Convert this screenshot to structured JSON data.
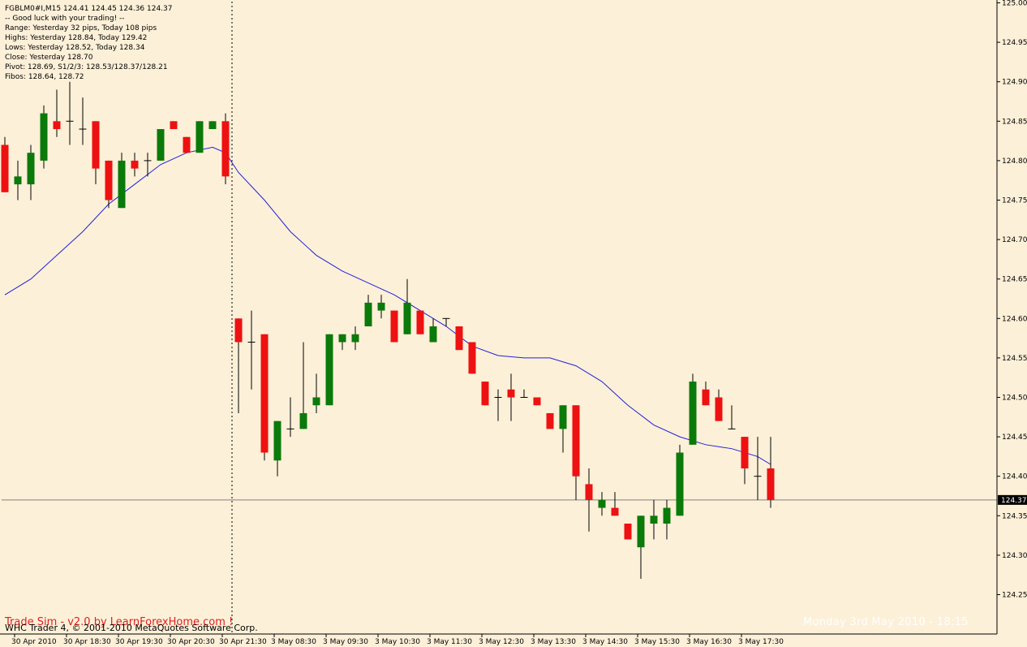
{
  "header": {
    "lines": [
      "FGBLM0#I,M15  124.41 124.45 124.36 124.37",
      "-- Good luck with your trading! --",
      "Range: Yesterday 32 pips, Today 108 pips",
      "Highs: Yesterday 128.84, Today 129.42",
      "Lows:  Yesterday 128.52, Today 128.34",
      "Close: Yesterday 128.70",
      "Pivot: 128.69, S1/2/3: 128.53/128.37/128.21",
      "Fibos: 128.64, 128.72"
    ]
  },
  "footer": {
    "watermark_left": "Trade Sim - v2.0 by LearnForexHome.com !",
    "copyright": "WHC Trader 4, © 2001-2010 MetaQuotes Software Corp.",
    "watermark_right": "Monday 3rd May 2010 - 18:15"
  },
  "colors": {
    "background": "#fdf0d8",
    "bull": "#0a7a0a",
    "bear": "#ee1111",
    "ma_line": "#2020dd",
    "axis": "#000000",
    "current_price_line": "#808080"
  },
  "chart_data": {
    "type": "candlestick",
    "symbol": "FGBLM0#I",
    "timeframe": "M15",
    "ylim": [
      124.22,
      125.0
    ],
    "current_price": 124.37,
    "current_price_label": "124.37",
    "y_ticks": [
      "125.00",
      "124.95",
      "124.90",
      "124.85",
      "124.80",
      "124.75",
      "124.70",
      "124.65",
      "124.60",
      "124.55",
      "124.50",
      "124.45",
      "124.40",
      "124.35",
      "124.30",
      "124.25"
    ],
    "y_tick_values": [
      125.0,
      124.95,
      124.9,
      124.85,
      124.8,
      124.75,
      124.7,
      124.65,
      124.6,
      124.55,
      124.5,
      124.45,
      124.4,
      124.35,
      124.3,
      124.25
    ],
    "x_ticks": [
      {
        "label": "30 Apr 2010",
        "bar": 1
      },
      {
        "label": "30 Apr 18:30",
        "bar": 5
      },
      {
        "label": "30 Apr 19:30",
        "bar": 9
      },
      {
        "label": "30 Apr 20:30",
        "bar": 13
      },
      {
        "label": "30 Apr 21:30",
        "bar": 17
      },
      {
        "label": "3 May 08:30",
        "bar": 21
      },
      {
        "label": "3 May 09:30",
        "bar": 25
      },
      {
        "label": "3 May 10:30",
        "bar": 29
      },
      {
        "label": "3 May 11:30",
        "bar": 33
      },
      {
        "label": "3 May 12:30",
        "bar": 37
      },
      {
        "label": "3 May 13:30",
        "bar": 41
      },
      {
        "label": "3 May 14:30",
        "bar": 45
      },
      {
        "label": "3 May 15:30",
        "bar": 49
      },
      {
        "label": "3 May 16:30",
        "bar": 53
      },
      {
        "label": "3 May 17:30",
        "bar": 57
      }
    ],
    "session_separator_bar": 17.5,
    "candles": [
      {
        "o": 124.82,
        "h": 124.83,
        "l": 124.76,
        "c": 124.76
      },
      {
        "o": 124.77,
        "h": 124.8,
        "l": 124.75,
        "c": 124.78
      },
      {
        "o": 124.77,
        "h": 124.82,
        "l": 124.75,
        "c": 124.81
      },
      {
        "o": 124.8,
        "h": 124.87,
        "l": 124.79,
        "c": 124.86
      },
      {
        "o": 124.85,
        "h": 124.89,
        "l": 124.83,
        "c": 124.84
      },
      {
        "o": 124.85,
        "h": 124.9,
        "l": 124.82,
        "c": 124.85
      },
      {
        "o": 124.84,
        "h": 124.88,
        "l": 124.82,
        "c": 124.84
      },
      {
        "o": 124.85,
        "h": 124.85,
        "l": 124.77,
        "c": 124.79
      },
      {
        "o": 124.8,
        "h": 124.8,
        "l": 124.74,
        "c": 124.75
      },
      {
        "o": 124.74,
        "h": 124.81,
        "l": 124.74,
        "c": 124.8
      },
      {
        "o": 124.8,
        "h": 124.81,
        "l": 124.78,
        "c": 124.79
      },
      {
        "o": 124.8,
        "h": 124.81,
        "l": 124.78,
        "c": 124.8
      },
      {
        "o": 124.8,
        "h": 124.84,
        "l": 124.8,
        "c": 124.84
      },
      {
        "o": 124.85,
        "h": 124.85,
        "l": 124.84,
        "c": 124.84
      },
      {
        "o": 124.83,
        "h": 124.83,
        "l": 124.81,
        "c": 124.81
      },
      {
        "o": 124.81,
        "h": 124.85,
        "l": 124.81,
        "c": 124.85
      },
      {
        "o": 124.84,
        "h": 124.85,
        "l": 124.84,
        "c": 124.85
      },
      {
        "o": 124.85,
        "h": 124.86,
        "l": 124.77,
        "c": 124.78
      },
      {
        "o": 124.6,
        "h": 124.6,
        "l": 124.48,
        "c": 124.57
      },
      {
        "o": 124.57,
        "h": 124.61,
        "l": 124.51,
        "c": 124.57
      },
      {
        "o": 124.58,
        "h": 124.58,
        "l": 124.42,
        "c": 124.43
      },
      {
        "o": 124.42,
        "h": 124.47,
        "l": 124.4,
        "c": 124.47
      },
      {
        "o": 124.46,
        "h": 124.5,
        "l": 124.45,
        "c": 124.46
      },
      {
        "o": 124.46,
        "h": 124.57,
        "l": 124.46,
        "c": 124.48
      },
      {
        "o": 124.49,
        "h": 124.53,
        "l": 124.48,
        "c": 124.5
      },
      {
        "o": 124.49,
        "h": 124.58,
        "l": 124.49,
        "c": 124.58
      },
      {
        "o": 124.57,
        "h": 124.58,
        "l": 124.56,
        "c": 124.58
      },
      {
        "o": 124.57,
        "h": 124.59,
        "l": 124.56,
        "c": 124.58
      },
      {
        "o": 124.59,
        "h": 124.63,
        "l": 124.59,
        "c": 124.62
      },
      {
        "o": 124.61,
        "h": 124.63,
        "l": 124.6,
        "c": 124.62
      },
      {
        "o": 124.61,
        "h": 124.61,
        "l": 124.57,
        "c": 124.57
      },
      {
        "o": 124.58,
        "h": 124.65,
        "l": 124.58,
        "c": 124.62
      },
      {
        "o": 124.61,
        "h": 124.61,
        "l": 124.58,
        "c": 124.58
      },
      {
        "o": 124.57,
        "h": 124.6,
        "l": 124.57,
        "c": 124.59
      },
      {
        "o": 124.6,
        "h": 124.6,
        "l": 124.59,
        "c": 124.6
      },
      {
        "o": 124.59,
        "h": 124.59,
        "l": 124.56,
        "c": 124.56
      },
      {
        "o": 124.57,
        "h": 124.57,
        "l": 124.53,
        "c": 124.53
      },
      {
        "o": 124.52,
        "h": 124.52,
        "l": 124.49,
        "c": 124.49
      },
      {
        "o": 124.5,
        "h": 124.51,
        "l": 124.47,
        "c": 124.5
      },
      {
        "o": 124.51,
        "h": 124.53,
        "l": 124.47,
        "c": 124.5
      },
      {
        "o": 124.5,
        "h": 124.51,
        "l": 124.5,
        "c": 124.5
      },
      {
        "o": 124.5,
        "h": 124.5,
        "l": 124.49,
        "c": 124.49
      },
      {
        "o": 124.48,
        "h": 124.48,
        "l": 124.46,
        "c": 124.46
      },
      {
        "o": 124.46,
        "h": 124.49,
        "l": 124.43,
        "c": 124.49
      },
      {
        "o": 124.49,
        "h": 124.49,
        "l": 124.37,
        "c": 124.4
      },
      {
        "o": 124.39,
        "h": 124.41,
        "l": 124.33,
        "c": 124.37
      },
      {
        "o": 124.36,
        "h": 124.38,
        "l": 124.35,
        "c": 124.37
      },
      {
        "o": 124.36,
        "h": 124.38,
        "l": 124.35,
        "c": 124.35
      },
      {
        "o": 124.34,
        "h": 124.34,
        "l": 124.32,
        "c": 124.32
      },
      {
        "o": 124.31,
        "h": 124.35,
        "l": 124.27,
        "c": 124.35
      },
      {
        "o": 124.34,
        "h": 124.37,
        "l": 124.32,
        "c": 124.35
      },
      {
        "o": 124.34,
        "h": 124.37,
        "l": 124.32,
        "c": 124.36
      },
      {
        "o": 124.35,
        "h": 124.44,
        "l": 124.35,
        "c": 124.43
      },
      {
        "o": 124.44,
        "h": 124.53,
        "l": 124.44,
        "c": 124.52
      },
      {
        "o": 124.51,
        "h": 124.52,
        "l": 124.49,
        "c": 124.49
      },
      {
        "o": 124.5,
        "h": 124.51,
        "l": 124.47,
        "c": 124.47
      },
      {
        "o": 124.46,
        "h": 124.49,
        "l": 124.46,
        "c": 124.46
      },
      {
        "o": 124.45,
        "h": 124.45,
        "l": 124.39,
        "c": 124.41
      },
      {
        "o": 124.4,
        "h": 124.45,
        "l": 124.37,
        "c": 124.4
      },
      {
        "o": 124.41,
        "h": 124.45,
        "l": 124.36,
        "c": 124.37
      }
    ],
    "moving_average": [
      {
        "bar": 0,
        "v": 124.63
      },
      {
        "bar": 2,
        "v": 124.65
      },
      {
        "bar": 4,
        "v": 124.68
      },
      {
        "bar": 6,
        "v": 124.71
      },
      {
        "bar": 8,
        "v": 124.745
      },
      {
        "bar": 10,
        "v": 124.77
      },
      {
        "bar": 12,
        "v": 124.795
      },
      {
        "bar": 14,
        "v": 124.81
      },
      {
        "bar": 16,
        "v": 124.817
      },
      {
        "bar": 17,
        "v": 124.81
      },
      {
        "bar": 18,
        "v": 124.785
      },
      {
        "bar": 20,
        "v": 124.75
      },
      {
        "bar": 22,
        "v": 124.71
      },
      {
        "bar": 24,
        "v": 124.68
      },
      {
        "bar": 26,
        "v": 124.66
      },
      {
        "bar": 28,
        "v": 124.645
      },
      {
        "bar": 30,
        "v": 124.63
      },
      {
        "bar": 32,
        "v": 124.61
      },
      {
        "bar": 34,
        "v": 124.59
      },
      {
        "bar": 36,
        "v": 124.565
      },
      {
        "bar": 38,
        "v": 124.553
      },
      {
        "bar": 40,
        "v": 124.55
      },
      {
        "bar": 42,
        "v": 124.55
      },
      {
        "bar": 44,
        "v": 124.54
      },
      {
        "bar": 46,
        "v": 124.52
      },
      {
        "bar": 48,
        "v": 124.49
      },
      {
        "bar": 50,
        "v": 124.465
      },
      {
        "bar": 52,
        "v": 124.45
      },
      {
        "bar": 54,
        "v": 124.44
      },
      {
        "bar": 56,
        "v": 124.435
      },
      {
        "bar": 58,
        "v": 124.425
      },
      {
        "bar": 59,
        "v": 124.415
      }
    ]
  }
}
